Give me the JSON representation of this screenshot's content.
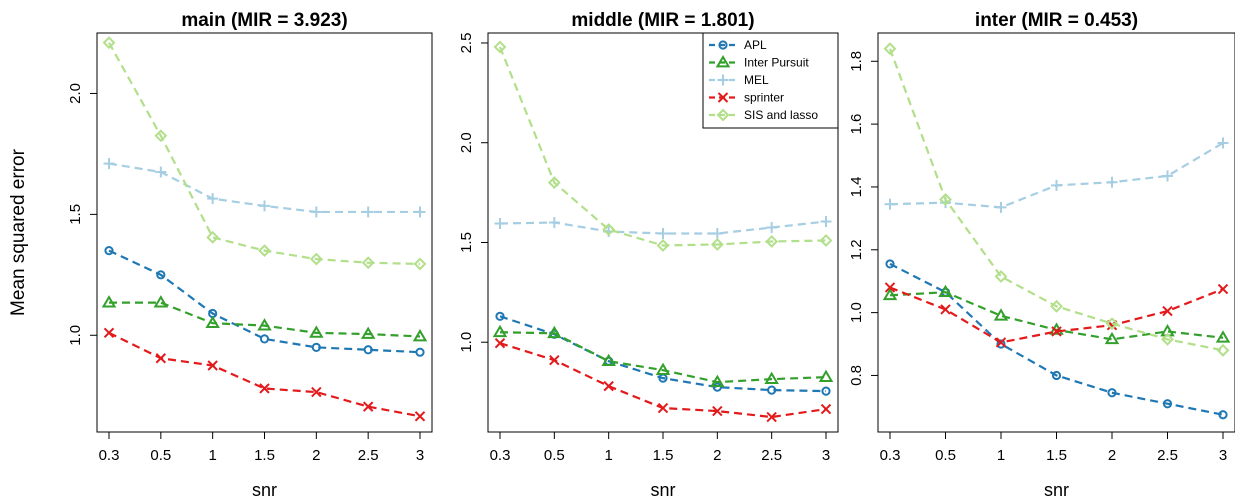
{
  "figure": {
    "ylabel": "Mean squared error",
    "legend_panel": 1,
    "legend_position": "top-right",
    "line_style": "dashed"
  },
  "chart_data": [
    {
      "type": "line",
      "title": "main (MIR = 3.923)",
      "xlabel": "snr",
      "ylabel": "Mean squared error",
      "x": [
        "0.3",
        "0.5",
        "1",
        "1.5",
        "2",
        "2.5",
        "3"
      ],
      "ylim": [
        0.6,
        2.25
      ],
      "yticks": [
        "1.0",
        "1.5",
        "2.0"
      ],
      "yticks_values": [
        1.0,
        1.5,
        2.0
      ],
      "series": [
        {
          "name": "APL",
          "color": "#1f78b4",
          "marker": "circle",
          "values": [
            1.35,
            1.25,
            1.09,
            0.985,
            0.95,
            0.94,
            0.93
          ]
        },
        {
          "name": "Inter Pursuit",
          "color": "#33a02c",
          "marker": "triangle",
          "values": [
            1.135,
            1.135,
            1.05,
            1.04,
            1.01,
            1.005,
            0.995
          ]
        },
        {
          "name": "MEL",
          "color": "#a6cee3",
          "marker": "plus",
          "values": [
            1.71,
            1.675,
            1.565,
            1.535,
            1.51,
            1.51,
            1.51
          ]
        },
        {
          "name": "sprinter",
          "color": "#e31a1c",
          "marker": "x",
          "values": [
            1.01,
            0.905,
            0.875,
            0.78,
            0.765,
            0.705,
            0.665
          ]
        },
        {
          "name": "SIS and lasso",
          "color": "#b2df8a",
          "marker": "diamond",
          "values": [
            2.21,
            1.825,
            1.405,
            1.35,
            1.315,
            1.3,
            1.295
          ]
        }
      ]
    },
    {
      "type": "line",
      "title": "middle (MIR = 1.801)",
      "xlabel": "snr",
      "ylabel": "",
      "x": [
        "0.3",
        "0.5",
        "1",
        "1.5",
        "2",
        "2.5",
        "3"
      ],
      "ylim": [
        0.55,
        2.55
      ],
      "yticks": [
        "1.0",
        "1.5",
        "2.0",
        "2.5"
      ],
      "yticks_values": [
        1.0,
        1.5,
        2.0,
        2.5
      ],
      "series": [
        {
          "name": "APL",
          "color": "#1f78b4",
          "marker": "circle",
          "values": [
            1.13,
            1.04,
            0.905,
            0.82,
            0.775,
            0.76,
            0.755
          ]
        },
        {
          "name": "Inter Pursuit",
          "color": "#33a02c",
          "marker": "triangle",
          "values": [
            1.05,
            1.045,
            0.905,
            0.86,
            0.8,
            0.815,
            0.825
          ]
        },
        {
          "name": "MEL",
          "color": "#a6cee3",
          "marker": "plus",
          "values": [
            1.595,
            1.6,
            1.555,
            1.545,
            1.545,
            1.575,
            1.605
          ]
        },
        {
          "name": "sprinter",
          "color": "#e31a1c",
          "marker": "x",
          "values": [
            0.995,
            0.91,
            0.78,
            0.67,
            0.655,
            0.625,
            0.665
          ]
        },
        {
          "name": "SIS and lasso",
          "color": "#b2df8a",
          "marker": "diamond",
          "values": [
            2.48,
            1.8,
            1.565,
            1.485,
            1.49,
            1.505,
            1.51
          ]
        }
      ]
    },
    {
      "type": "line",
      "title": "inter (MIR = 0.453)",
      "xlabel": "snr",
      "ylabel": "",
      "x": [
        "0.3",
        "0.5",
        "1",
        "1.5",
        "2",
        "2.5",
        "3"
      ],
      "ylim": [
        0.62,
        1.89
      ],
      "yticks": [
        "0.8",
        "1.0",
        "1.2",
        "1.4",
        "1.6",
        "1.8"
      ],
      "yticks_values": [
        0.8,
        1.0,
        1.2,
        1.4,
        1.6,
        1.8
      ],
      "series": [
        {
          "name": "APL",
          "color": "#1f78b4",
          "marker": "circle",
          "values": [
            1.155,
            1.065,
            0.9,
            0.8,
            0.745,
            0.71,
            0.675
          ]
        },
        {
          "name": "Inter Pursuit",
          "color": "#33a02c",
          "marker": "triangle",
          "values": [
            1.055,
            1.065,
            0.99,
            0.945,
            0.915,
            0.94,
            0.92
          ]
        },
        {
          "name": "MEL",
          "color": "#a6cee3",
          "marker": "plus",
          "values": [
            1.345,
            1.35,
            1.335,
            1.405,
            1.415,
            1.435,
            1.54
          ]
        },
        {
          "name": "sprinter",
          "color": "#e31a1c",
          "marker": "x",
          "values": [
            1.08,
            1.01,
            0.905,
            0.94,
            0.96,
            1.005,
            1.075
          ]
        },
        {
          "name": "SIS and lasso",
          "color": "#b2df8a",
          "marker": "diamond",
          "values": [
            1.84,
            1.36,
            1.115,
            1.02,
            0.965,
            0.915,
            0.88
          ]
        }
      ]
    }
  ]
}
